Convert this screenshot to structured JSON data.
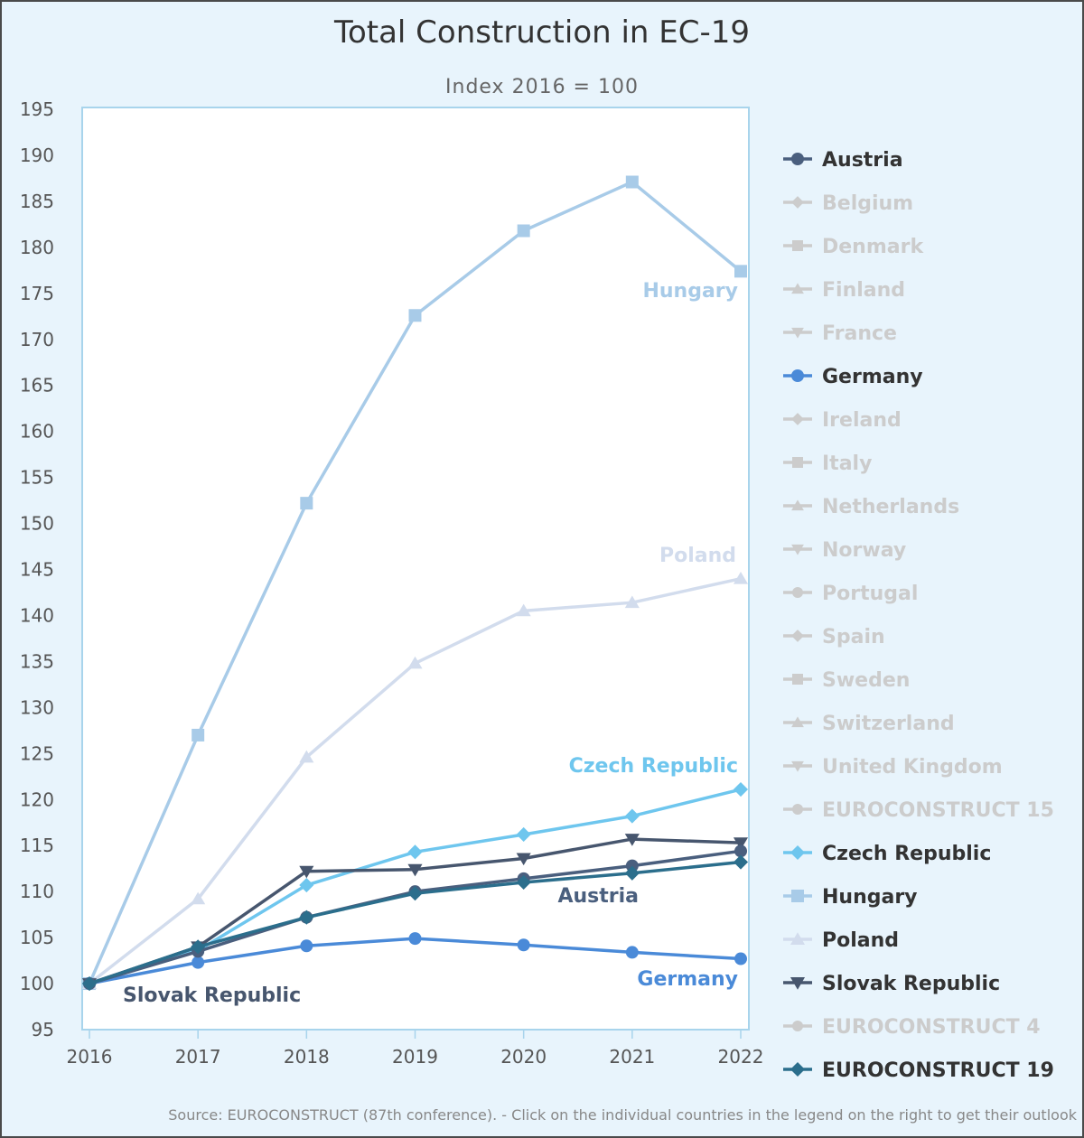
{
  "chart_data": {
    "type": "line",
    "title": "Total Construction in EC-19",
    "subtitle": "Index 2016 = 100",
    "x": [
      2016,
      2017,
      2018,
      2019,
      2020,
      2021,
      2022
    ],
    "xlim": [
      2016,
      2022
    ],
    "ylim": [
      95,
      195
    ],
    "yticks": [
      95,
      100,
      105,
      110,
      115,
      120,
      125,
      130,
      135,
      140,
      145,
      150,
      155,
      160,
      165,
      170,
      175,
      180,
      185,
      190,
      195
    ],
    "grid": false,
    "legend_position": "right",
    "series": [
      {
        "name": "Austria",
        "visible": true,
        "color": "#4a5f7e",
        "marker": "circle",
        "values": [
          100,
          103.5,
          107.2,
          110.0,
          111.4,
          112.8,
          114.4
        ],
        "label": "Austria"
      },
      {
        "name": "Belgium",
        "visible": false,
        "marker": "diamond"
      },
      {
        "name": "Denmark",
        "visible": false,
        "marker": "square"
      },
      {
        "name": "Finland",
        "visible": false,
        "marker": "triangle"
      },
      {
        "name": "France",
        "visible": false,
        "marker": "triangle-down"
      },
      {
        "name": "Germany",
        "visible": true,
        "color": "#4a8ad8",
        "marker": "circle",
        "values": [
          100,
          102.3,
          104.1,
          104.9,
          104.2,
          103.4,
          102.7
        ],
        "label": "Germany"
      },
      {
        "name": "Ireland",
        "visible": false,
        "marker": "diamond"
      },
      {
        "name": "Italy",
        "visible": false,
        "marker": "square"
      },
      {
        "name": "Netherlands",
        "visible": false,
        "marker": "triangle"
      },
      {
        "name": "Norway",
        "visible": false,
        "marker": "triangle-down"
      },
      {
        "name": "Portugal",
        "visible": false,
        "marker": "circle"
      },
      {
        "name": "Spain",
        "visible": false,
        "marker": "diamond"
      },
      {
        "name": "Sweden",
        "visible": false,
        "marker": "square"
      },
      {
        "name": "Switzerland",
        "visible": false,
        "marker": "triangle"
      },
      {
        "name": "United Kingdom",
        "visible": false,
        "marker": "triangle-down"
      },
      {
        "name": "EUROCONSTRUCT 15",
        "visible": false,
        "marker": "circle"
      },
      {
        "name": "Czech Republic",
        "visible": true,
        "color": "#6ec6ee",
        "marker": "diamond",
        "values": [
          100,
          103.6,
          110.7,
          114.3,
          116.2,
          118.2,
          121.1
        ],
        "label": "Czech Republic"
      },
      {
        "name": "Hungary",
        "visible": true,
        "color": "#a8cbe8",
        "marker": "square",
        "values": [
          100,
          127.0,
          152.2,
          172.6,
          181.8,
          187.1,
          177.4
        ],
        "label": "Hungary"
      },
      {
        "name": "Poland",
        "visible": true,
        "color": "#d2dced",
        "marker": "triangle",
        "values": [
          100,
          109.2,
          124.6,
          134.8,
          140.5,
          141.4,
          144.0
        ],
        "label": "Poland"
      },
      {
        "name": "Slovak Republic",
        "visible": true,
        "color": "#47566e",
        "marker": "triangle-down",
        "values": [
          100,
          104.0,
          112.2,
          112.4,
          113.6,
          115.7,
          115.3
        ],
        "label": "Slovak Republic"
      },
      {
        "name": "EUROCONSTRUCT 4",
        "visible": false,
        "marker": "circle"
      },
      {
        "name": "EUROCONSTRUCT 19",
        "visible": true,
        "color": "#2b6e8c",
        "marker": "diamond",
        "values": [
          100,
          104.0,
          107.2,
          109.8,
          111.0,
          112.0,
          113.2
        ]
      }
    ],
    "source": "Source: EUROCONSTRUCT (87th conference). - Click on the individual countries in the legend on the right to get their outlook"
  },
  "colors": {
    "background": "#e8f4fc",
    "plot_background": "#ffffff",
    "plot_border": "#a8d4ec",
    "legend_active_text": "#333333",
    "legend_inactive": "#cccccc"
  }
}
